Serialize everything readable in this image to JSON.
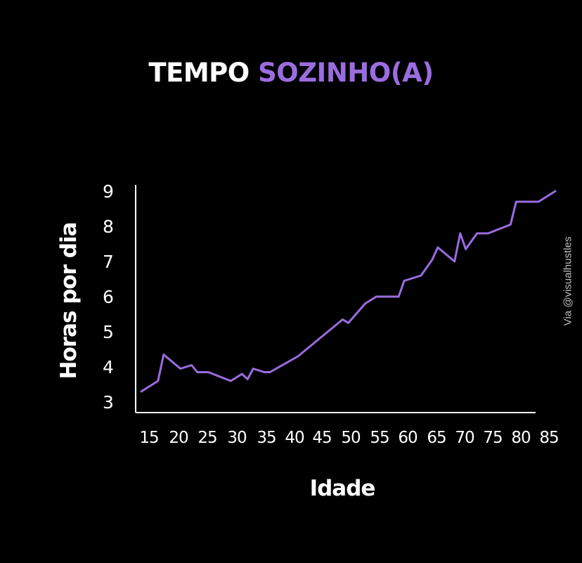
{
  "title": {
    "main": "TEMPO",
    "accent": "SOZINHO(A)"
  },
  "credit": "Via @visualhustles",
  "colors": {
    "background": "#000000",
    "line": "#9b6ce0",
    "axis": "#ffffff",
    "title_accent": "#9b6ce0",
    "text": "#ffffff"
  },
  "chart_data": {
    "type": "line",
    "title": "TEMPO SOZINHO(A)",
    "xlabel": "Idade",
    "ylabel": "Horas por dia",
    "xticks": [
      15,
      20,
      25,
      30,
      35,
      40,
      45,
      50,
      55,
      60,
      65,
      70,
      75,
      80,
      85
    ],
    "yticks": [
      3,
      4,
      5,
      6,
      7,
      8,
      9
    ],
    "xlim": [
      14,
      89
    ],
    "ylim": [
      2.7,
      9.2
    ],
    "grid": false,
    "series": [
      {
        "x": [
          15,
          18,
          19,
          22,
          24,
          25,
          27,
          31,
          33,
          34,
          35,
          37,
          38,
          43,
          51,
          52,
          55,
          57,
          61,
          62,
          65,
          67,
          68,
          71,
          72,
          73,
          75,
          77,
          81,
          82,
          86,
          89
        ],
        "y": [
          3.3,
          3.6,
          4.35,
          3.95,
          4.05,
          3.85,
          3.85,
          3.6,
          3.8,
          3.65,
          3.95,
          3.85,
          3.85,
          4.3,
          5.35,
          5.25,
          5.8,
          6.0,
          6.0,
          6.45,
          6.6,
          7.05,
          7.4,
          7.0,
          7.8,
          7.35,
          7.8,
          7.8,
          8.05,
          8.7,
          8.7,
          9.0
        ]
      }
    ]
  }
}
